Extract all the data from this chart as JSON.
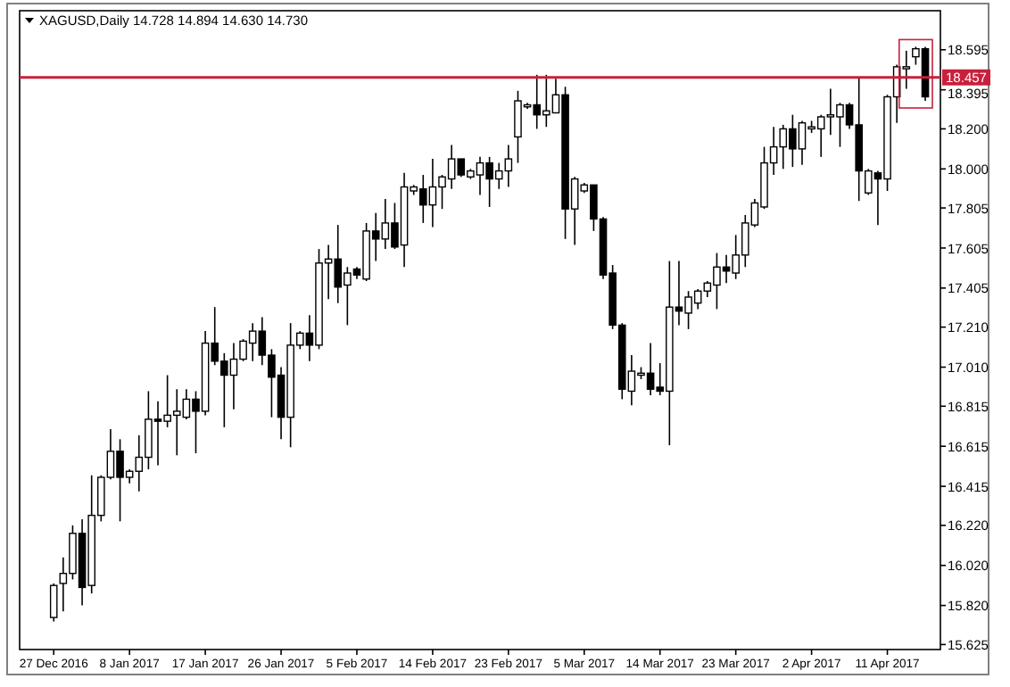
{
  "chart_data": {
    "type": "candlestick",
    "title": "XAGUSD,Daily 14.728 14.894 14.630 14.730",
    "categories": [
      "27 Dec 2016",
      null,
      null,
      null,
      null,
      null,
      null,
      null,
      "8 Jan 2017",
      null,
      null,
      null,
      null,
      null,
      null,
      null,
      "17 Jan 2017",
      null,
      null,
      null,
      null,
      null,
      null,
      null,
      "26 Jan 2017",
      null,
      null,
      null,
      null,
      null,
      null,
      null,
      "5 Feb 2017",
      null,
      null,
      null,
      null,
      null,
      null,
      null,
      "14 Feb 2017",
      null,
      null,
      null,
      null,
      null,
      null,
      null,
      "23 Feb 2017",
      null,
      null,
      null,
      null,
      null,
      null,
      null,
      "5 Mar 2017",
      null,
      null,
      null,
      null,
      null,
      null,
      null,
      "14 Mar 2017",
      null,
      null,
      null,
      null,
      null,
      null,
      null,
      "23 Mar 2017",
      null,
      null,
      null,
      null,
      null,
      null,
      null,
      "2 Apr 2017",
      null,
      null,
      null,
      null,
      null,
      null,
      null,
      "11 Apr 2017",
      null,
      null,
      null,
      null
    ],
    "ohlc": [
      [
        15.76,
        15.93,
        15.74,
        15.92
      ],
      [
        15.93,
        16.06,
        15.79,
        15.98
      ],
      [
        15.98,
        16.22,
        15.95,
        16.18
      ],
      [
        16.18,
        16.25,
        15.82,
        15.91
      ],
      [
        15.92,
        16.47,
        15.88,
        16.27
      ],
      [
        16.27,
        16.47,
        16.24,
        16.46
      ],
      [
        16.46,
        16.7,
        16.45,
        16.59
      ],
      [
        16.59,
        16.65,
        16.24,
        16.46
      ],
      [
        16.46,
        16.5,
        16.43,
        16.49
      ],
      [
        16.49,
        16.67,
        16.39,
        16.56
      ],
      [
        16.56,
        16.89,
        16.5,
        16.75
      ],
      [
        16.75,
        16.84,
        16.52,
        16.74
      ],
      [
        16.74,
        16.97,
        16.71,
        16.77
      ],
      [
        16.77,
        16.9,
        16.57,
        16.79
      ],
      [
        16.76,
        16.9,
        16.75,
        16.85
      ],
      [
        16.85,
        16.89,
        16.58,
        16.79
      ],
      [
        16.79,
        17.19,
        16.77,
        17.13
      ],
      [
        17.13,
        17.31,
        17.02,
        17.04
      ],
      [
        17.04,
        17.08,
        16.71,
        16.97
      ],
      [
        16.97,
        17.13,
        16.8,
        17.05
      ],
      [
        17.05,
        17.15,
        17.04,
        17.14
      ],
      [
        17.13,
        17.23,
        17.04,
        17.19
      ],
      [
        17.19,
        17.26,
        17.02,
        17.07
      ],
      [
        17.07,
        17.1,
        16.76,
        16.96
      ],
      [
        16.97,
        17.01,
        16.65,
        16.76
      ],
      [
        16.76,
        17.23,
        16.61,
        17.12
      ],
      [
        17.12,
        17.19,
        17.1,
        17.18
      ],
      [
        17.18,
        17.27,
        17.04,
        17.12
      ],
      [
        17.12,
        17.6,
        17.1,
        17.53
      ],
      [
        17.53,
        17.62,
        17.35,
        17.55
      ],
      [
        17.55,
        17.72,
        17.33,
        17.41
      ],
      [
        17.42,
        17.51,
        17.22,
        17.48
      ],
      [
        17.5,
        17.51,
        17.45,
        17.47
      ],
      [
        17.45,
        17.73,
        17.44,
        17.69
      ],
      [
        17.69,
        17.78,
        17.54,
        17.65
      ],
      [
        17.65,
        17.85,
        17.6,
        17.73
      ],
      [
        17.73,
        17.83,
        17.6,
        17.61
      ],
      [
        17.62,
        17.98,
        17.51,
        17.91
      ],
      [
        17.89,
        17.92,
        17.87,
        17.91
      ],
      [
        17.9,
        17.97,
        17.73,
        17.82
      ],
      [
        17.82,
        18.05,
        17.71,
        17.91
      ],
      [
        17.91,
        17.97,
        17.8,
        17.96
      ],
      [
        17.95,
        18.12,
        17.9,
        18.05
      ],
      [
        18.05,
        18.05,
        17.96,
        17.97
      ],
      [
        17.96,
        18,
        17.95,
        17.99
      ],
      [
        17.97,
        18.06,
        17.87,
        18.03
      ],
      [
        18.03,
        18.06,
        17.81,
        17.95
      ],
      [
        17.95,
        18.03,
        17.9,
        17.99
      ],
      [
        17.99,
        18.12,
        17.91,
        18.05
      ],
      [
        18.16,
        18.39,
        18.03,
        18.34
      ],
      [
        18.31,
        18.33,
        18.3,
        18.32
      ],
      [
        18.32,
        18.47,
        18.2,
        18.27
      ],
      [
        18.27,
        18.47,
        18.21,
        18.29
      ],
      [
        18.28,
        18.45,
        18.28,
        18.37
      ],
      [
        18.37,
        18.41,
        17.65,
        17.8
      ],
      [
        17.8,
        17.96,
        17.62,
        17.95
      ],
      [
        17.89,
        17.93,
        17.88,
        17.92
      ],
      [
        17.92,
        17.92,
        17.69,
        17.75
      ],
      [
        17.75,
        17.76,
        17.45,
        17.47
      ],
      [
        17.48,
        17.52,
        17.2,
        17.22
      ],
      [
        17.22,
        17.23,
        16.85,
        16.9
      ],
      [
        16.89,
        17.07,
        16.82,
        16.99
      ],
      [
        16.97,
        17.01,
        16.95,
        16.98
      ],
      [
        16.98,
        17.13,
        16.87,
        16.9
      ],
      [
        16.91,
        17.03,
        16.87,
        16.89
      ],
      [
        16.89,
        17.54,
        16.62,
        17.31
      ],
      [
        17.31,
        17.54,
        17.22,
        17.29
      ],
      [
        17.28,
        17.39,
        17.2,
        17.36
      ],
      [
        17.33,
        17.4,
        17.3,
        17.39
      ],
      [
        17.39,
        17.44,
        17.36,
        17.43
      ],
      [
        17.42,
        17.58,
        17.3,
        17.51
      ],
      [
        17.51,
        17.57,
        17.43,
        17.49
      ],
      [
        17.48,
        17.67,
        17.45,
        17.57
      ],
      [
        17.57,
        17.77,
        17.51,
        17.73
      ],
      [
        17.72,
        17.85,
        17.71,
        17.83
      ],
      [
        17.81,
        18.11,
        17.8,
        18.03
      ],
      [
        18.03,
        18.21,
        17.97,
        18.11
      ],
      [
        18.11,
        18.22,
        18,
        18.2
      ],
      [
        18.2,
        18.27,
        18.01,
        18.1
      ],
      [
        18.1,
        18.24,
        18.02,
        18.23
      ],
      [
        18.2,
        18.24,
        18.18,
        18.21
      ],
      [
        18.2,
        18.27,
        18.06,
        18.26
      ],
      [
        18.26,
        18.4,
        18.17,
        18.27
      ],
      [
        18.26,
        18.33,
        18.11,
        18.32
      ],
      [
        18.32,
        18.33,
        18.2,
        18.22
      ],
      [
        18.22,
        18.46,
        17.84,
        17.99
      ],
      [
        17.88,
        18,
        17.87,
        17.99
      ],
      [
        17.98,
        17.99,
        17.72,
        17.95
      ],
      [
        17.95,
        18.37,
        17.89,
        18.36
      ],
      [
        18.36,
        18.52,
        18.23,
        18.51
      ],
      [
        18.5,
        18.59,
        18.4,
        18.51
      ],
      [
        18.56,
        18.61,
        18.52,
        18.6
      ],
      [
        18.6,
        18.61,
        18.34,
        18.36
      ]
    ],
    "ylim": [
      15.6,
      18.79
    ],
    "yticks": [
      {
        "value": 18.595,
        "label": "18.595"
      },
      {
        "value": 18.395,
        "label": "18.395"
      },
      {
        "value": 18.2,
        "label": "18.200"
      },
      {
        "value": 18,
        "label": "18.000"
      },
      {
        "value": 17.805,
        "label": "17.805"
      },
      {
        "value": 17.605,
        "label": "17.605"
      },
      {
        "value": 17.405,
        "label": "17.405"
      },
      {
        "value": 17.21,
        "label": "17.210"
      },
      {
        "value": 17.01,
        "label": "17.010"
      },
      {
        "value": 16.815,
        "label": "16.815"
      },
      {
        "value": 16.615,
        "label": "16.615"
      },
      {
        "value": 16.415,
        "label": "16.415"
      },
      {
        "value": 16.22,
        "label": "16.220"
      },
      {
        "value": 16.02,
        "label": "16.020"
      },
      {
        "value": 15.82,
        "label": "15.820"
      },
      {
        "value": 15.625,
        "label": "15.625"
      }
    ],
    "ref_lines": [
      {
        "axis": "y",
        "value": 18.457,
        "label": "18.457",
        "color": "#c8203c"
      }
    ]
  }
}
